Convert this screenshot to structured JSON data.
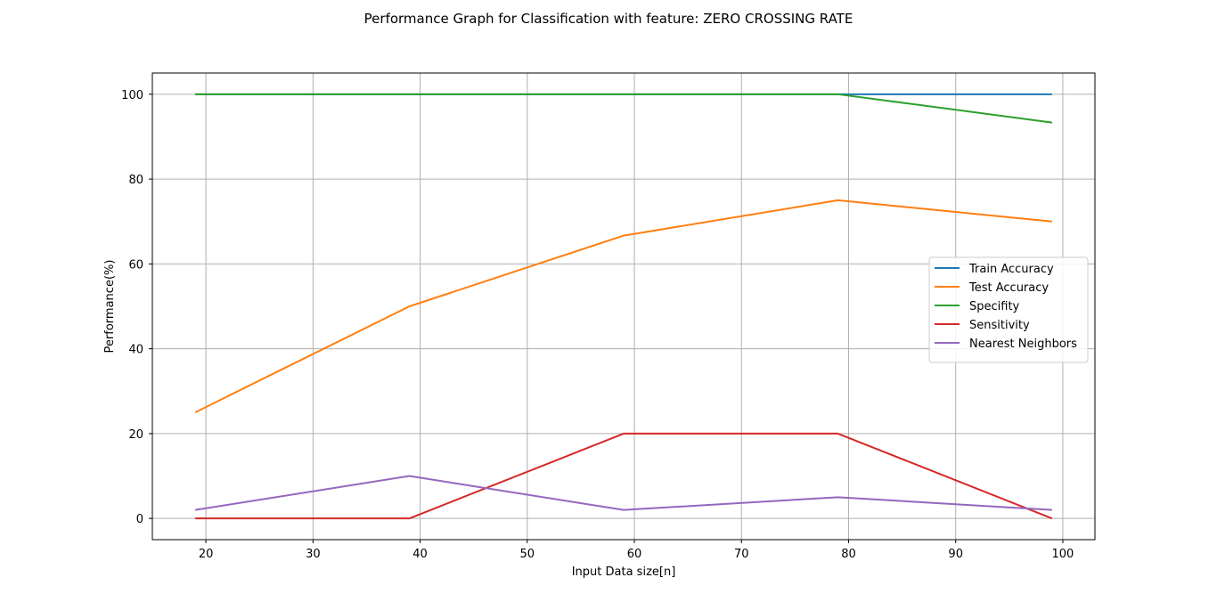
{
  "chart_data": {
    "type": "line",
    "title": "Performance Graph for Classification with feature: ZERO CROSSING RATE",
    "xlabel": "Input Data size[n]",
    "ylabel": "Performance(%)",
    "xlim": [
      15,
      103
    ],
    "ylim": [
      -5,
      105
    ],
    "xticks": [
      20,
      30,
      40,
      50,
      60,
      70,
      80,
      90,
      100
    ],
    "yticks": [
      0,
      20,
      40,
      60,
      80,
      100
    ],
    "grid": true,
    "legend_position": "center-right",
    "x": [
      19,
      39,
      59,
      79,
      99
    ],
    "series": [
      {
        "name": "Train Accuracy",
        "color": "#1f77b4",
        "values": [
          100,
          100,
          100,
          100,
          100
        ]
      },
      {
        "name": "Test Accuracy",
        "color": "#ff7f0e",
        "values": [
          25,
          50,
          66.67,
          75,
          70
        ]
      },
      {
        "name": "Specifity",
        "color": "#2ca02c",
        "values": [
          100,
          100,
          100,
          100,
          93.33
        ]
      },
      {
        "name": "Sensitivity",
        "color": "#d62728",
        "values": [
          0,
          0,
          20,
          20,
          0
        ]
      },
      {
        "name": "Nearest Neighbors",
        "color": "#9467bd",
        "values": [
          2,
          10,
          2,
          5,
          2
        ]
      }
    ]
  }
}
